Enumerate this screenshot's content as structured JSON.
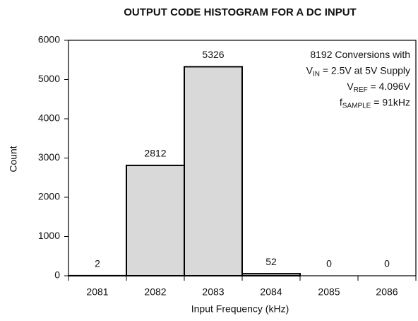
{
  "chart_data": {
    "type": "bar",
    "title": "OUTPUT CODE HISTOGRAM FOR A DC INPUT",
    "xlabel": "Input Frequency (kHz)",
    "ylabel": "Count",
    "categories": [
      "2081",
      "2082",
      "2083",
      "2084",
      "2085",
      "2086"
    ],
    "values": [
      2,
      2812,
      5326,
      52,
      0,
      0
    ],
    "color": "#d9d9d9",
    "ylim": [
      0,
      6000
    ],
    "yticks": [
      0,
      1000,
      2000,
      3000,
      4000,
      5000,
      6000
    ],
    "grid": false,
    "annotation": [
      [
        "8192 Conversions with"
      ],
      [
        "V",
        {
          "text": "IN",
          "sub": true
        },
        " = 2.5V at 5V Supply"
      ],
      [
        "V",
        {
          "text": "REF",
          "sub": true
        },
        " = 4.096V"
      ],
      [
        "f",
        {
          "text": "SAMPLE",
          "sub": true
        },
        " = 91kHz"
      ]
    ]
  }
}
